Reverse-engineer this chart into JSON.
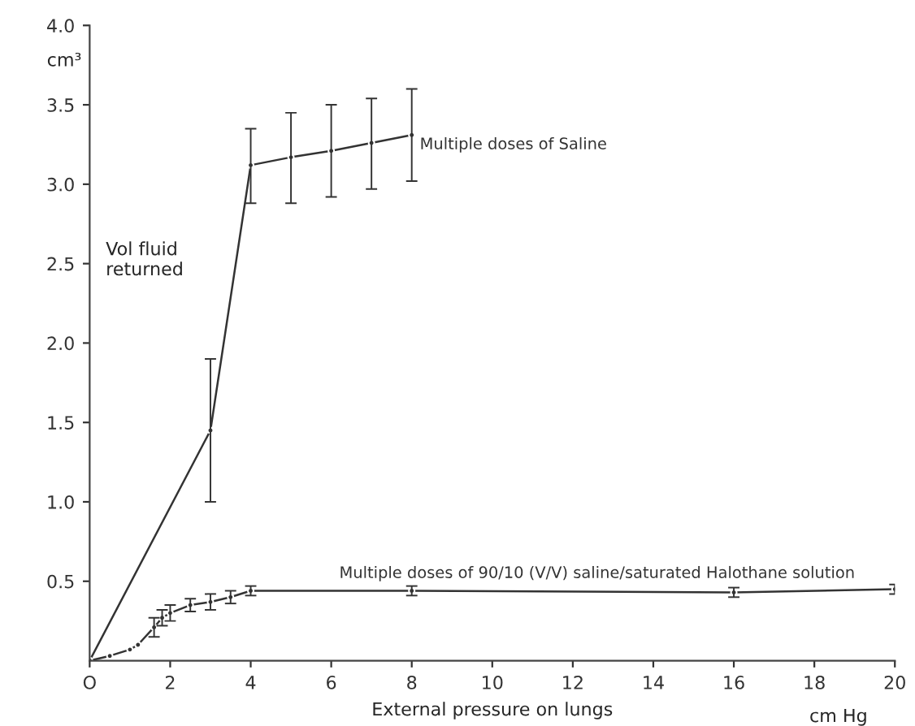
{
  "chart_data": {
    "type": "line",
    "xlabel": "External pressure on lungs",
    "ylabel": "cm³",
    "annotations": [
      "Vol fluid\nreturned",
      "cm Hg"
    ],
    "xlim": [
      0,
      20
    ],
    "xticks": [
      {
        "value": 0,
        "label": "O"
      },
      2,
      4,
      6,
      8,
      10,
      12,
      14,
      16,
      18,
      20
    ],
    "ylim": [
      0,
      4
    ],
    "yticks": [
      0.5,
      {
        "value": 1,
        "label": "1.0"
      },
      1.5,
      {
        "value": 2,
        "label": "2.0"
      },
      2.5,
      {
        "value": 3,
        "label": "3.0"
      },
      3.5,
      {
        "value": 4,
        "label": "4.0"
      }
    ],
    "marker": "circle",
    "grid": false,
    "series": [
      {
        "name": "Multiple doses of Saline",
        "color": "#333333",
        "x": [
          0,
          3,
          4,
          5,
          6,
          7,
          8
        ],
        "values": [
          0,
          1.45,
          3.12,
          3.17,
          3.21,
          3.26,
          3.31
        ],
        "errors": [
          null,
          [
            1.0,
            1.9
          ],
          [
            2.88,
            3.35
          ],
          [
            2.88,
            3.45
          ],
          [
            2.92,
            3.5
          ],
          [
            2.97,
            3.54
          ],
          [
            3.02,
            3.6
          ]
        ]
      },
      {
        "name": "Multiple doses of 90/10 (V/V) saline/saturated Halothane solution",
        "color": "#333333",
        "x": [
          0,
          0.5,
          1,
          1.2,
          1.6,
          1.8,
          2,
          2.5,
          3,
          3.5,
          4,
          8,
          16,
          20
        ],
        "values": [
          0,
          0.03,
          0.07,
          0.1,
          0.21,
          0.27,
          0.3,
          0.35,
          0.37,
          0.4,
          0.44,
          0.44,
          0.43,
          0.45
        ],
        "errors": [
          null,
          null,
          null,
          null,
          0.06,
          0.05,
          0.05,
          0.04,
          0.05,
          0.04,
          0.03,
          0.03,
          0.03,
          0.03
        ]
      }
    ]
  }
}
